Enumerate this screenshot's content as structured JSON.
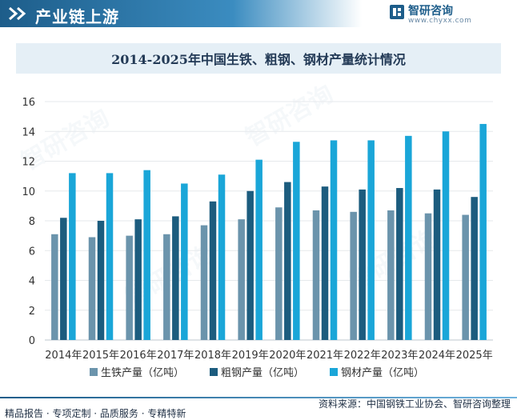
{
  "header": {
    "title": "产业链上游"
  },
  "brand": {
    "name": "智研咨询",
    "url": "www.chyxx.com"
  },
  "chart_data": {
    "type": "bar",
    "title": "2014-2025年中国生铁、粗钢、钢材产量统计情况",
    "categories": [
      "2014年",
      "2015年",
      "2016年",
      "2017年",
      "2018年",
      "2019年",
      "2020年",
      "2021年",
      "2022年",
      "2023年",
      "2024年",
      "2025年"
    ],
    "series": [
      {
        "name": "生铁产量（亿吨）",
        "color": "#6b94ac",
        "values": [
          7.1,
          6.9,
          7.0,
          7.1,
          7.7,
          8.1,
          8.9,
          8.7,
          8.6,
          8.7,
          8.5,
          8.4
        ]
      },
      {
        "name": "粗钢产量（亿吨）",
        "color": "#1c5c7e",
        "values": [
          8.2,
          8.0,
          8.1,
          8.3,
          9.3,
          10.0,
          10.6,
          10.3,
          10.1,
          10.2,
          10.1,
          9.6
        ]
      },
      {
        "name": "钢材产量（亿吨）",
        "color": "#1aa6d8",
        "values": [
          11.2,
          11.2,
          11.4,
          10.5,
          11.1,
          12.1,
          13.3,
          13.4,
          13.4,
          13.7,
          14.0,
          14.5
        ]
      }
    ],
    "ylim": [
      0,
      16
    ],
    "yticks": [
      0,
      2,
      4,
      6,
      8,
      10,
      12,
      14,
      16
    ],
    "xlabel": "",
    "ylabel": "",
    "legend": "bottom-center",
    "grid": true
  },
  "footer": {
    "left": "精品报告 · 专项定制 · 品质服务 · 专精特新",
    "right": "资料来源：中国钢铁工业协会、智研咨询整理"
  }
}
